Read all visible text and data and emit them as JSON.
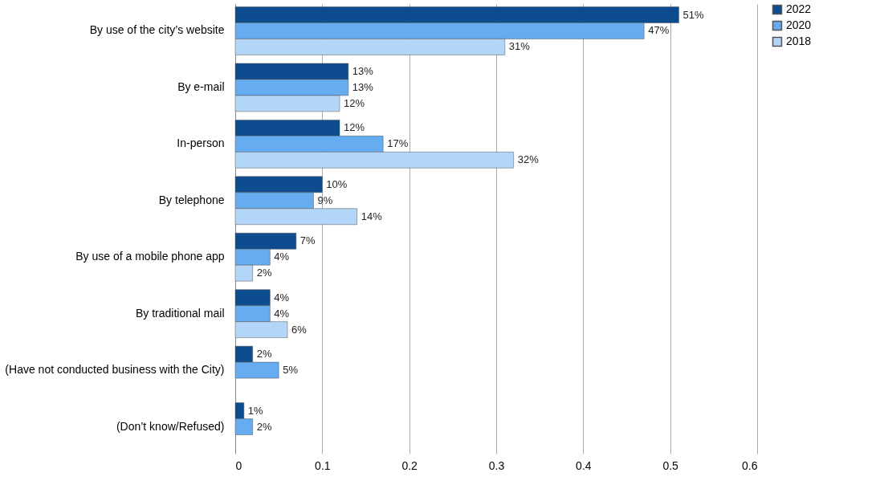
{
  "chart_data": {
    "type": "bar",
    "orientation": "horizontal",
    "categories": [
      "By use of the city’s website",
      "By e-mail",
      "In-person",
      "By telephone",
      "By use of a mobile phone app",
      "By traditional mail",
      "(Have not conducted business with the City)",
      "(Don’t know/Refused)"
    ],
    "series": [
      {
        "name": "2022",
        "color": "#0d4c8f",
        "values": [
          0.51,
          0.13,
          0.12,
          0.1,
          0.07,
          0.04,
          0.02,
          0.01
        ],
        "value_labels": [
          "51%",
          "13%",
          "12%",
          "10%",
          "7%",
          "4%",
          "2%",
          "1%"
        ]
      },
      {
        "name": "2020",
        "color": "#65acf0",
        "values": [
          0.47,
          0.13,
          0.17,
          0.09,
          0.04,
          0.04,
          0.05,
          0.02
        ],
        "value_labels": [
          "47%",
          "13%",
          "17%",
          "9%",
          "4%",
          "4%",
          "5%",
          "2%"
        ]
      },
      {
        "name": "2018",
        "color": "#b3d6f8",
        "values": [
          0.31,
          0.12,
          0.32,
          0.14,
          0.02,
          0.06,
          null,
          null
        ],
        "value_labels": [
          "31%",
          "12%",
          "32%",
          "14%",
          "2%",
          "6%",
          null,
          null
        ]
      }
    ],
    "xlim": [
      0,
      0.6
    ],
    "xticks": [
      0,
      0.1,
      0.2,
      0.3,
      0.4,
      0.5,
      0.6
    ],
    "grid": "x",
    "legend": "right"
  }
}
